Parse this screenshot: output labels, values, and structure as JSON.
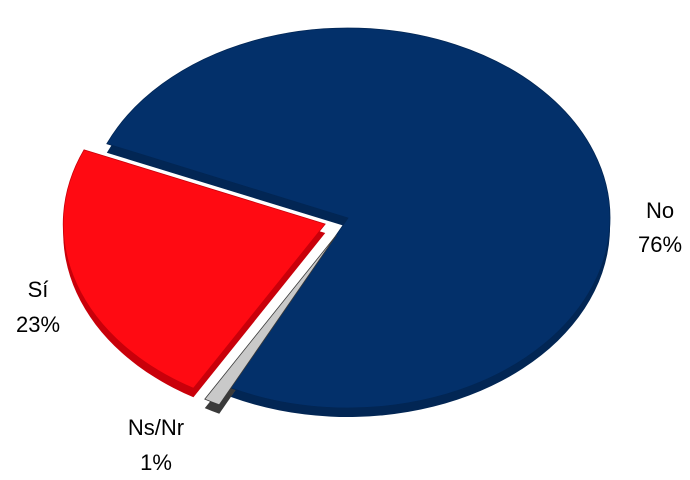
{
  "chart_data": {
    "type": "pie",
    "title": "",
    "slices": [
      {
        "label": "No",
        "percent_label": "76%",
        "value": 76,
        "color": "#03306a",
        "edge": "#022654",
        "exploded": false
      },
      {
        "label": "Ns/Nr",
        "percent_label": "1%",
        "value": 1,
        "color": "#c9c9c9",
        "edge": "#3a3a3a",
        "exploded": true
      },
      {
        "label": "Sí",
        "percent_label": "23%",
        "value": 23,
        "color": "#ff0a12",
        "edge": "#c9000a",
        "exploded": true
      }
    ],
    "legend": "none",
    "style": "3d-tilted"
  }
}
